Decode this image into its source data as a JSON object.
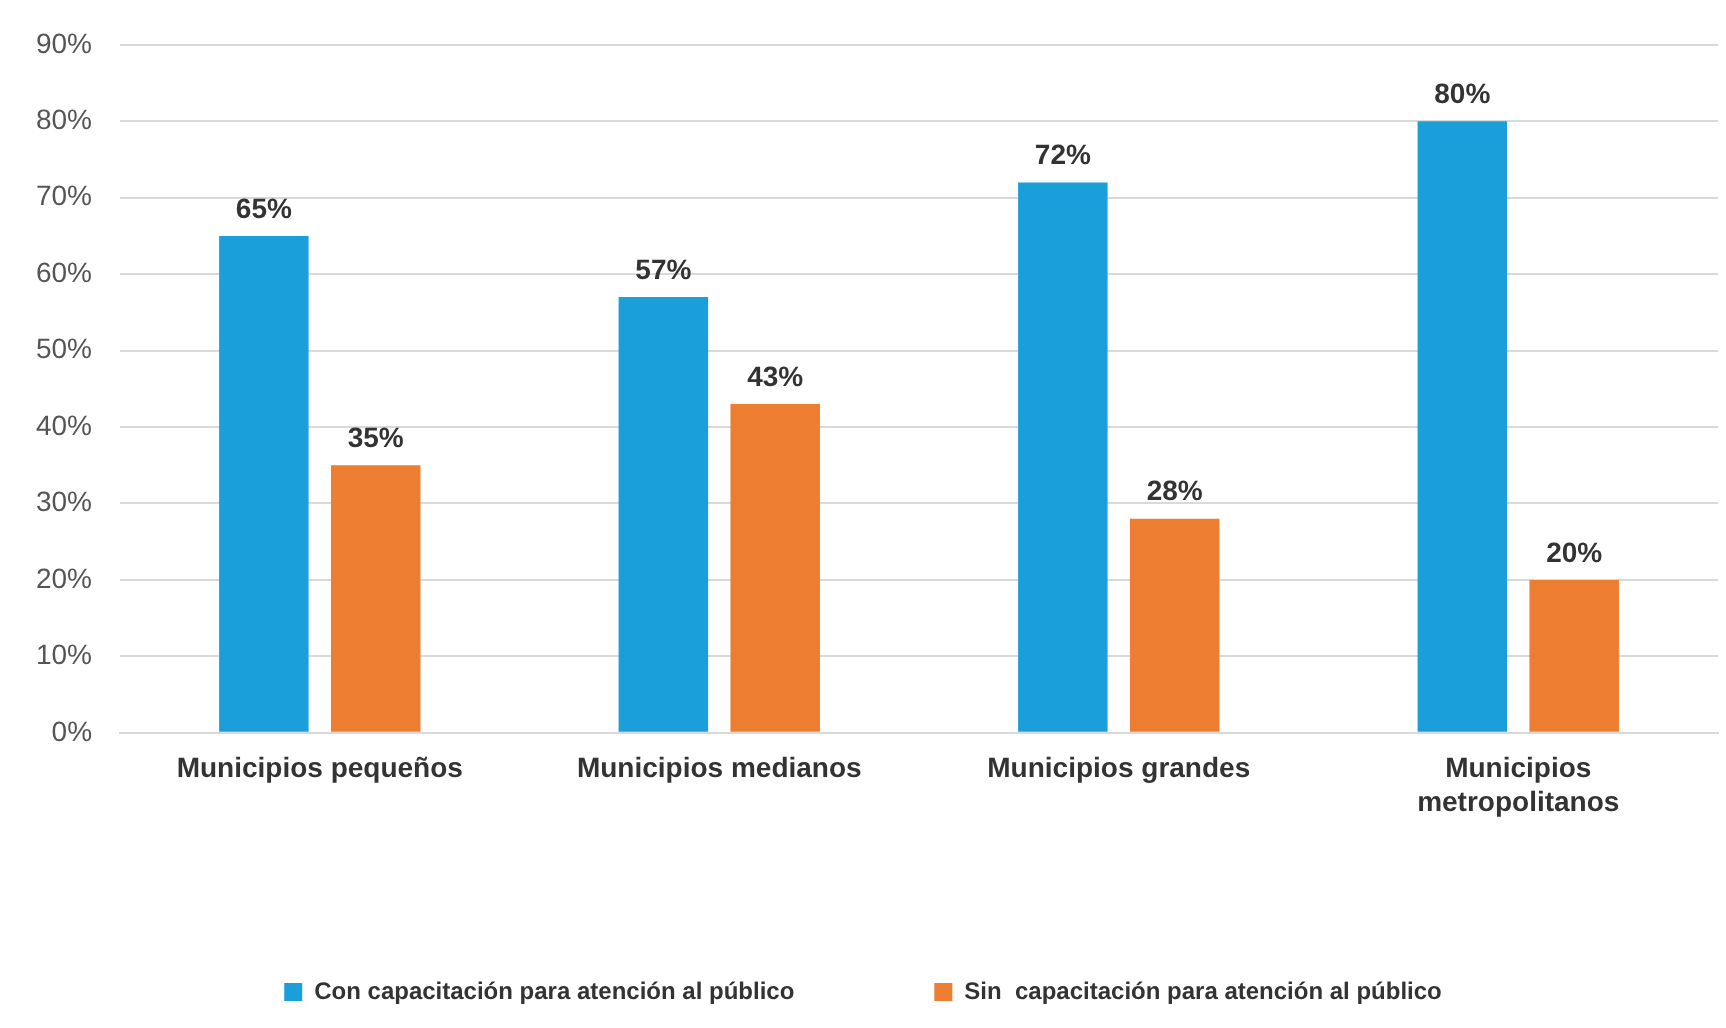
{
  "chart_data": {
    "type": "bar",
    "categories": [
      "Municipios pequeños",
      "Municipios medianos",
      "Municipios grandes",
      "Municipios metropolitanos"
    ],
    "series": [
      {
        "name": "Con capacitación para atención al público",
        "color": "#1b9fdb",
        "values": [
          65,
          57,
          72,
          80
        ],
        "value_labels": [
          "65%",
          "57%",
          "72%",
          "80%"
        ]
      },
      {
        "name": "Sin  capacitación para atención al público",
        "color": "#ed7d31",
        "values": [
          35,
          43,
          28,
          20
        ],
        "value_labels": [
          "35%",
          "43%",
          "28%",
          "20%"
        ]
      }
    ],
    "ylim": [
      0,
      90
    ],
    "yticks": [
      {
        "value": 0,
        "label": "0%"
      },
      {
        "value": 10,
        "label": "10%"
      },
      {
        "value": 20,
        "label": "20%"
      },
      {
        "value": 30,
        "label": "30%"
      },
      {
        "value": 40,
        "label": "40%"
      },
      {
        "value": 50,
        "label": "50%"
      },
      {
        "value": 60,
        "label": "60%"
      },
      {
        "value": 70,
        "label": "70%"
      },
      {
        "value": 80,
        "label": "80%"
      },
      {
        "value": 90,
        "label": "90%"
      }
    ],
    "grid": "y",
    "legend": "bottom"
  }
}
